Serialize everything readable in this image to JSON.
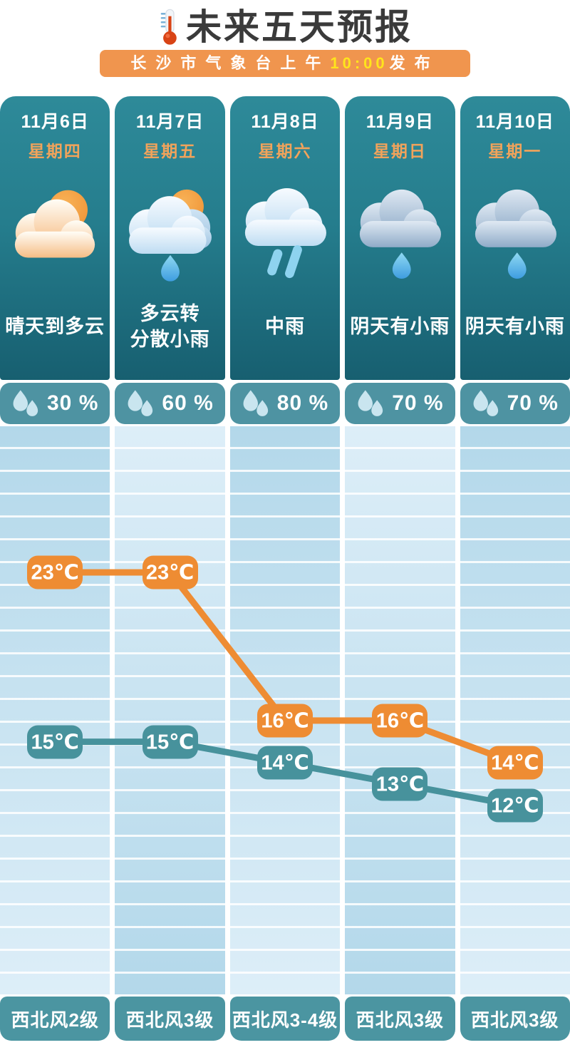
{
  "header": {
    "title": "未来五天预报",
    "title_icon": "thermometer-icon",
    "banner": {
      "prefix": "长沙市气象台上午",
      "time": "10:00",
      "suffix": "发布",
      "bg_color": "#f0954e",
      "time_color": "#ffe41c"
    }
  },
  "days": [
    {
      "date": "11月6日",
      "weekday": "星期四",
      "icon": "sun-cloud",
      "condition_lines": [
        "晴天到多云"
      ],
      "precip_display": "30 %",
      "wind": "西北风2级"
    },
    {
      "date": "11月7日",
      "weekday": "星期五",
      "icon": "cloud-sun-drop",
      "condition_lines": [
        "多云转",
        "分散小雨"
      ],
      "precip_display": "60 %",
      "wind": "西北风3级"
    },
    {
      "date": "11月8日",
      "weekday": "星期六",
      "icon": "cloud-rain",
      "condition_lines": [
        "中雨"
      ],
      "precip_display": "80 %",
      "wind": "西北风3-4级"
    },
    {
      "date": "11月9日",
      "weekday": "星期日",
      "icon": "cloud-drop",
      "condition_lines": [
        "阴天有小雨"
      ],
      "precip_display": "70 %",
      "wind": "西北风3级"
    },
    {
      "date": "11月10日",
      "weekday": "星期一",
      "icon": "cloud-drop",
      "condition_lines": [
        "阴天有小雨"
      ],
      "precip_display": "70 %",
      "wind": "西北风3级"
    }
  ],
  "chart_data": {
    "type": "line",
    "categories": [
      "11月6日",
      "11月7日",
      "11月8日",
      "11月9日",
      "11月10日"
    ],
    "series": [
      {
        "name": "high_temp",
        "values": [
          23,
          23,
          16,
          16,
          14
        ],
        "color": "#ee8c33"
      },
      {
        "name": "low_temp",
        "values": [
          15,
          15,
          14,
          13,
          12
        ],
        "color": "#47929c"
      }
    ],
    "unit": "℃",
    "point_labels": true,
    "grid": true,
    "legend": "none",
    "y_range_shown": [
      12,
      23
    ]
  },
  "colors": {
    "card_top": "#2e8a99",
    "card_bottom": "#175f70",
    "badge_teal": "#4e93a2",
    "stripe_dark": "#b3d8ea",
    "stripe_light": "#ddeef8",
    "weekday_orange": "#f1a35b",
    "title_text": "#3a3a3a"
  }
}
